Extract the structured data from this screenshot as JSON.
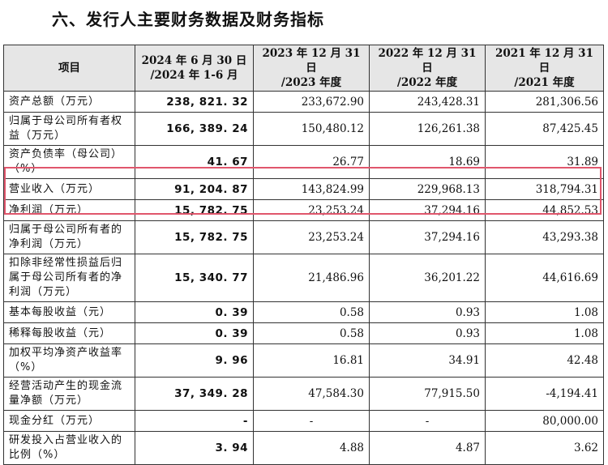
{
  "title": "六、发行人主要财务数据及财务指标",
  "table": {
    "header": [
      {
        "l1": "项目",
        "l2": ""
      },
      {
        "l1": "2024 年 6 月 30 日",
        "l2": "/2024 年 1-6 月"
      },
      {
        "l1": "2023 年 12 月 31 日",
        "l2": "/2023 年度"
      },
      {
        "l1": "2022 年 12 月 31 日",
        "l2": "/2022 年度"
      },
      {
        "l1": "2021 年 12 月 31 日",
        "l2": "/2021 年度"
      }
    ],
    "rows": [
      {
        "label": "资产总额（万元）",
        "v": [
          "238, 821. 32",
          "233,672.90",
          "243,428.31",
          "281,306.56"
        ]
      },
      {
        "label": "归属于母公司所有者权益（万元）",
        "v": [
          "166, 389. 24",
          "150,480.12",
          "126,261.38",
          "87,425.45"
        ]
      },
      {
        "label": "资产负债率（母公司）（%）",
        "v": [
          "41. 67",
          "26.77",
          "18.69",
          "31.89"
        ]
      },
      {
        "label": "营业收入（万元）",
        "v": [
          "91, 204. 87",
          "143,824.99",
          "229,968.13",
          "318,794.31"
        ]
      },
      {
        "label": "净利润（万元）",
        "v": [
          "15, 782. 75",
          "23,253.24",
          "37,294.16",
          "44,852.53"
        ]
      },
      {
        "label": "归属于母公司所有者的净利润（万元）",
        "v": [
          "15, 782. 75",
          "23,253.24",
          "37,294.16",
          "43,293.38"
        ]
      },
      {
        "label": "扣除非经常性损益后归属于母公司所有者的净利润（万元）",
        "v": [
          "15, 340. 77",
          "21,486.96",
          "36,201.22",
          "44,616.69"
        ]
      },
      {
        "label": "基本每股收益（元）",
        "v": [
          "0. 39",
          "0.58",
          "0.93",
          "1.08"
        ]
      },
      {
        "label": "稀释每股收益（元）",
        "v": [
          "0. 39",
          "0.58",
          "0.93",
          "1.08"
        ]
      },
      {
        "label": "加权平均净资产收益率（%）",
        "v": [
          "9. 96",
          "16.81",
          "34.91",
          "42.48"
        ]
      },
      {
        "label": "经营活动产生的现金流量净额（万元）",
        "v": [
          "37, 349. 28",
          "47,584.30",
          "77,915.50",
          "-4,194.41"
        ]
      },
      {
        "label": "现金分红（万元）",
        "v": [
          "-",
          "-",
          "-",
          "80,000.00"
        ]
      },
      {
        "label": "研发投入占营业收入的比例（%）",
        "v": [
          "3. 94",
          "4.88",
          "4.87",
          "3.62"
        ]
      }
    ]
  },
  "highlight_color": "#e0566c"
}
